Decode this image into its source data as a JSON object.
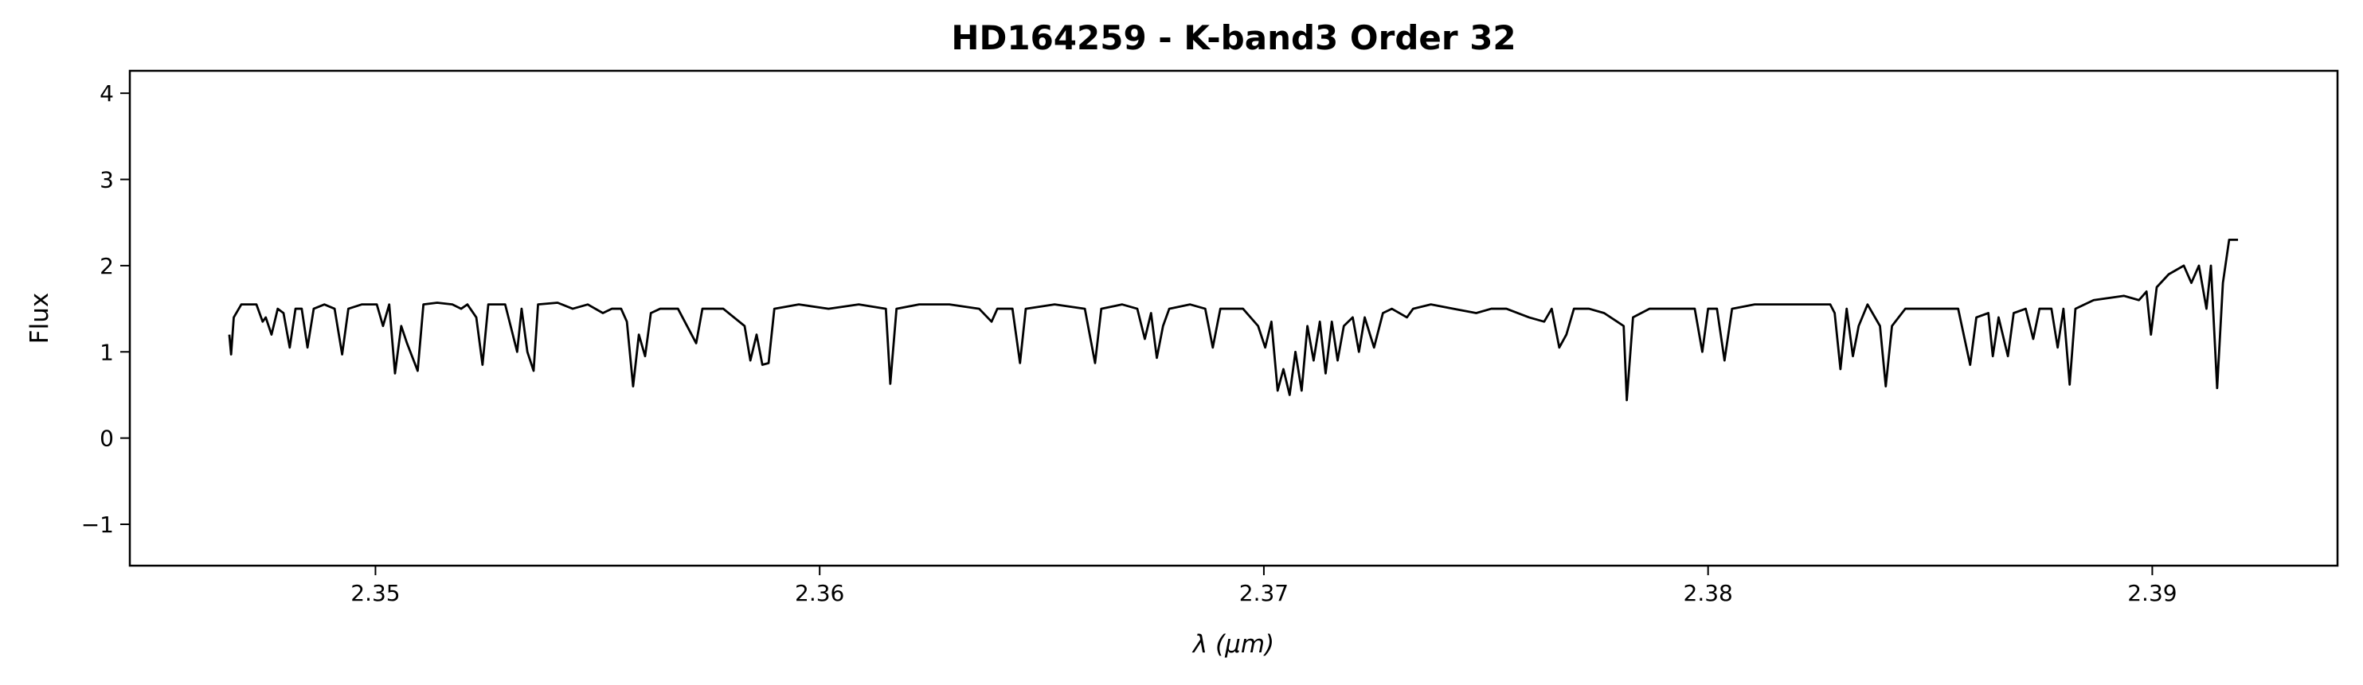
{
  "chart_data": {
    "type": "line",
    "title": "HD164259 - K-band3 Order 32",
    "x_label": "λ (μm)",
    "y_label": "Flux",
    "xlim": [
      2.34447,
      2.39417
    ],
    "ylim": [
      -1.48,
      4.26
    ],
    "xticks": [
      2.35,
      2.36,
      2.37,
      2.38,
      2.39
    ],
    "yticks": [
      {
        "value": -1,
        "label": "−1"
      },
      0,
      1,
      2,
      3,
      4
    ],
    "x": [
      2.34671,
      2.34675,
      2.34681,
      2.34698,
      2.34732,
      2.34746,
      2.34753,
      2.34766,
      2.3478,
      2.34793,
      2.34807,
      2.3482,
      2.34834,
      2.34847,
      2.34861,
      2.34885,
      2.34908,
      2.34925,
      2.34939,
      2.34969,
      2.35003,
      2.35017,
      2.35031,
      2.35044,
      2.35058,
      2.35071,
      2.35095,
      2.35108,
      2.35139,
      2.35173,
      2.35193,
      2.35207,
      2.35227,
      2.35241,
      2.35254,
      2.35292,
      2.35319,
      2.35329,
      2.35342,
      2.35356,
      2.35366,
      2.3541,
      2.35444,
      2.35478,
      2.35512,
      2.35532,
      2.35553,
      2.35566,
      2.3558,
      2.35593,
      2.35607,
      2.3562,
      2.35641,
      2.35681,
      2.35722,
      2.35736,
      2.35783,
      2.35831,
      2.35844,
      2.35858,
      2.35871,
      2.35885,
      2.35898,
      2.35953,
      2.3602,
      2.36088,
      2.36149,
      2.36159,
      2.36173,
      2.36224,
      2.36292,
      2.36359,
      2.36387,
      2.364,
      2.36434,
      2.36451,
      2.36464,
      2.36529,
      2.36597,
      2.3662,
      2.36634,
      2.36681,
      2.36715,
      2.36732,
      2.36746,
      2.36759,
      2.36773,
      2.36787,
      2.36834,
      2.36868,
      2.36885,
      2.36902,
      2.36953,
      2.36987,
      2.37003,
      2.37017,
      2.37031,
      2.37044,
      2.37058,
      2.37071,
      2.37085,
      2.37098,
      2.37112,
      2.37126,
      2.37139,
      2.37153,
      2.37166,
      2.3718,
      2.372,
      2.37214,
      2.37227,
      2.37248,
      2.37268,
      2.37288,
      2.37322,
      2.37336,
      2.37376,
      2.37427,
      2.37478,
      2.37512,
      2.37546,
      2.37597,
      2.37631,
      2.37648,
      2.37665,
      2.37681,
      2.37698,
      2.37732,
      2.37766,
      2.3781,
      2.37817,
      2.37831,
      2.37868,
      2.37919,
      2.3797,
      2.37987,
      2.38,
      2.3802,
      2.38037,
      2.38054,
      2.38105,
      2.38173,
      2.38241,
      2.38275,
      2.38285,
      2.38298,
      2.38312,
      2.38326,
      2.38339,
      2.38359,
      2.38387,
      2.384,
      2.38414,
      2.38444,
      2.38495,
      2.38563,
      2.3859,
      2.38604,
      2.38631,
      2.38641,
      2.38654,
      2.38675,
      2.38688,
      2.38715,
      2.38732,
      2.38746,
      2.38773,
      2.38787,
      2.388,
      2.38814,
      2.38827,
      2.38868,
      2.38936,
      2.3897,
      2.38987,
      2.38997,
      2.3901,
      2.39037,
      2.39071,
      2.39088,
      2.39105,
      2.39122,
      2.39132,
      2.39146,
      2.39159,
      2.39173,
      2.39193
    ],
    "series": [
      {
        "color": "#000000",
        "values": [
          1.2,
          0.97,
          1.4,
          1.55,
          1.55,
          1.35,
          1.4,
          1.2,
          1.5,
          1.45,
          1.05,
          1.5,
          1.5,
          1.05,
          1.5,
          1.55,
          1.5,
          0.97,
          1.5,
          1.55,
          1.55,
          1.3,
          1.55,
          0.75,
          1.3,
          1.1,
          0.78,
          1.55,
          1.57,
          1.55,
          1.5,
          1.55,
          1.4,
          0.85,
          1.55,
          1.55,
          1.0,
          1.5,
          1.0,
          0.78,
          1.55,
          1.57,
          1.5,
          1.55,
          1.45,
          1.5,
          1.5,
          1.35,
          0.6,
          1.2,
          0.95,
          1.45,
          1.5,
          1.5,
          1.1,
          1.5,
          1.5,
          1.3,
          0.9,
          1.2,
          0.85,
          0.87,
          1.5,
          1.55,
          1.5,
          1.55,
          1.5,
          0.63,
          1.5,
          1.55,
          1.55,
          1.5,
          1.35,
          1.5,
          1.5,
          0.87,
          1.5,
          1.55,
          1.5,
          0.87,
          1.5,
          1.55,
          1.5,
          1.15,
          1.45,
          0.93,
          1.3,
          1.5,
          1.55,
          1.5,
          1.05,
          1.5,
          1.5,
          1.3,
          1.05,
          1.35,
          0.55,
          0.8,
          0.5,
          1.0,
          0.55,
          1.3,
          0.9,
          1.35,
          0.75,
          1.35,
          0.9,
          1.3,
          1.4,
          1.0,
          1.4,
          1.05,
          1.45,
          1.5,
          1.4,
          1.5,
          1.55,
          1.5,
          1.45,
          1.5,
          1.5,
          1.4,
          1.35,
          1.5,
          1.05,
          1.2,
          1.5,
          1.5,
          1.45,
          1.3,
          0.44,
          1.4,
          1.5,
          1.5,
          1.5,
          1.0,
          1.5,
          1.5,
          0.9,
          1.5,
          1.55,
          1.55,
          1.55,
          1.55,
          1.45,
          0.8,
          1.5,
          0.95,
          1.3,
          1.55,
          1.3,
          0.6,
          1.3,
          1.5,
          1.5,
          1.5,
          0.85,
          1.4,
          1.45,
          0.95,
          1.4,
          0.95,
          1.45,
          1.5,
          1.15,
          1.5,
          1.5,
          1.05,
          1.5,
          0.62,
          1.5,
          1.6,
          1.65,
          1.6,
          1.7,
          1.2,
          1.75,
          1.9,
          2.0,
          1.8,
          2.0,
          1.5,
          2.0,
          0.58,
          1.8,
          2.3,
          2.3
        ]
      }
    ]
  }
}
